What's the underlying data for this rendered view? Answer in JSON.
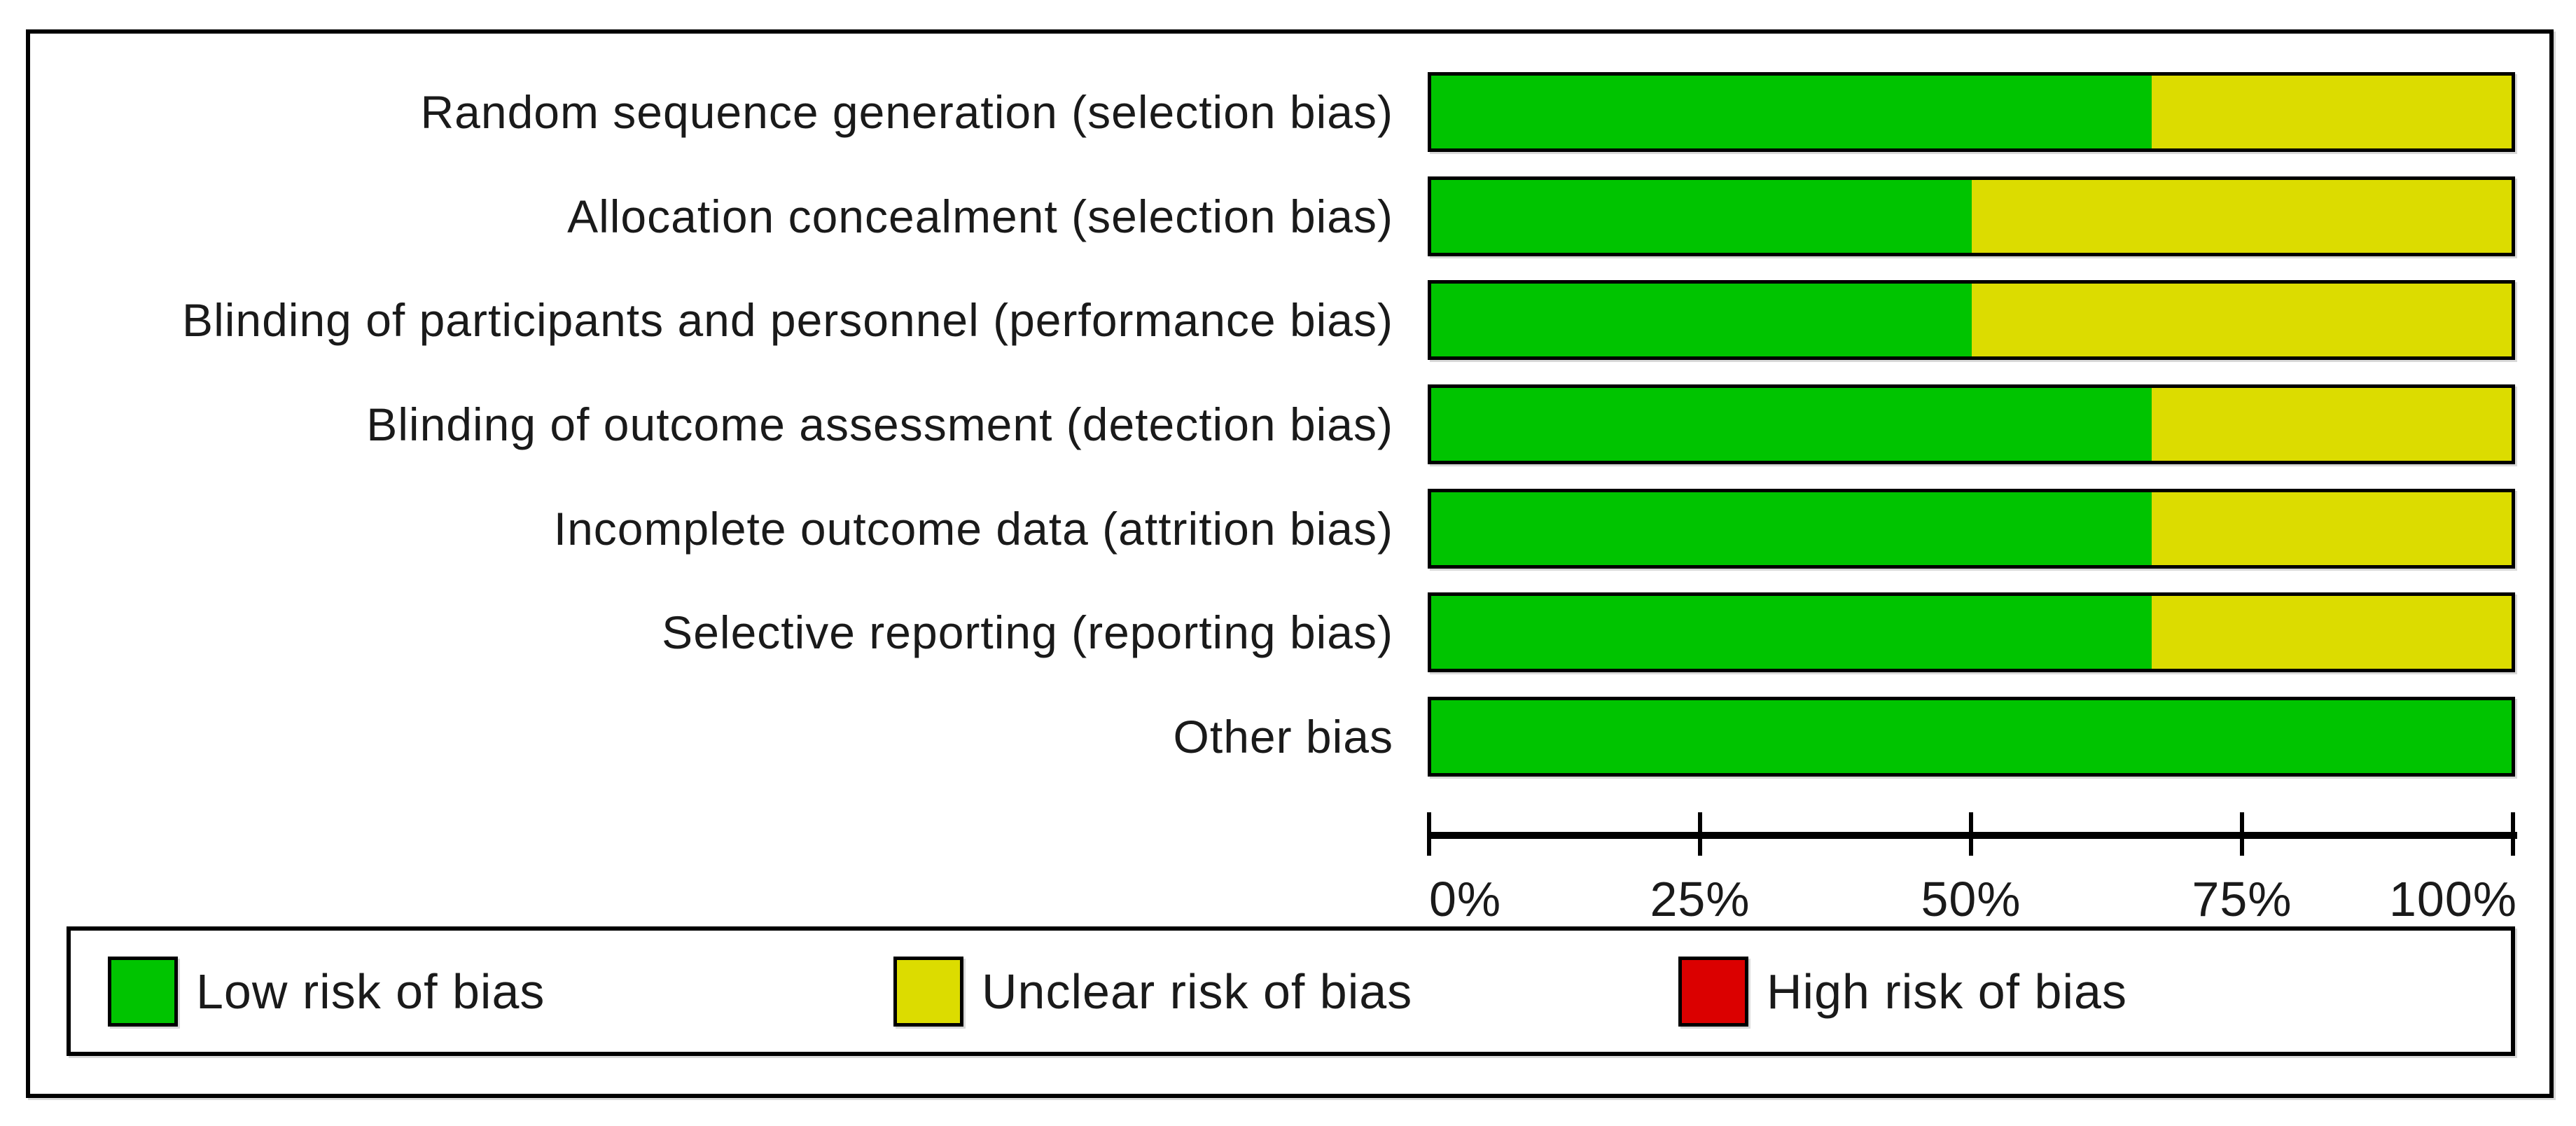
{
  "chart_data": {
    "type": "bar",
    "subtype": "horizontal-stacked",
    "title": "",
    "categories": [
      "Random sequence generation (selection bias)",
      "Allocation concealment (selection bias)",
      "Blinding of participants and personnel (performance bias)",
      "Blinding of outcome assessment (detection bias)",
      "Incomplete outcome data (attrition bias)",
      "Selective reporting (reporting bias)",
      "Other bias"
    ],
    "series": [
      {
        "name": "Low risk of bias",
        "color": "#00c400",
        "values": [
          66.7,
          50,
          50,
          66.7,
          66.7,
          66.7,
          100
        ]
      },
      {
        "name": "Unclear risk of bias",
        "color": "#dcdc00",
        "values": [
          33.3,
          50,
          50,
          33.3,
          33.3,
          33.3,
          0
        ]
      },
      {
        "name": "High risk of bias",
        "color": "#db0000",
        "values": [
          0,
          0,
          0,
          0,
          0,
          0,
          0
        ]
      }
    ],
    "x_axis": {
      "range": [
        0,
        100
      ],
      "tick_labels": [
        "0%",
        "25%",
        "50%",
        "75%",
        "100%"
      ]
    },
    "grid": false,
    "legend_position": "bottom",
    "colors": {
      "bar_border": "#000000",
      "frame_border": "#000000",
      "background": "#ffffff"
    }
  }
}
